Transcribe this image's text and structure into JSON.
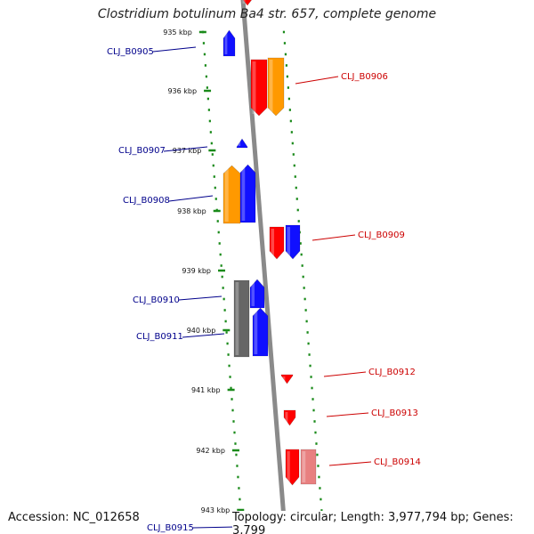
{
  "title": "Clostridium botulinum Ba4 str. 657, complete genome",
  "footer": {
    "accession": "Accession: NC_012658",
    "topology": "Topology: circular; Length: 3,977,794 bp; Genes: 3,799"
  },
  "colors": {
    "backbone": "#8a8a8a",
    "tick": "#1a8a1a",
    "blue": "#1010ff",
    "red": "#ff0000",
    "orange": "#ff9900",
    "gray": "#666666",
    "pink": "#e88080",
    "label_blue": "#00008b",
    "label_red": "#cc0000"
  },
  "ticks": [
    "935 kbp",
    "936 kbp",
    "937 kbp",
    "938 kbp",
    "939 kbp",
    "940 kbp",
    "941 kbp",
    "942 kbp",
    "943 kbp"
  ],
  "genes": [
    {
      "id": "CLJ_B0905",
      "strand": "-"
    },
    {
      "id": "CLJ_B0906",
      "strand": "+"
    },
    {
      "id": "CLJ_B0907",
      "strand": "-"
    },
    {
      "id": "CLJ_B0908",
      "strand": "-"
    },
    {
      "id": "CLJ_B0909",
      "strand": "+"
    },
    {
      "id": "CLJ_B0910",
      "strand": "-"
    },
    {
      "id": "CLJ_B0911",
      "strand": "-"
    },
    {
      "id": "CLJ_B0912",
      "strand": "+"
    },
    {
      "id": "CLJ_B0913",
      "strand": "+"
    },
    {
      "id": "CLJ_B0914",
      "strand": "+"
    },
    {
      "id": "CLJ_B0915",
      "strand": "-"
    }
  ]
}
